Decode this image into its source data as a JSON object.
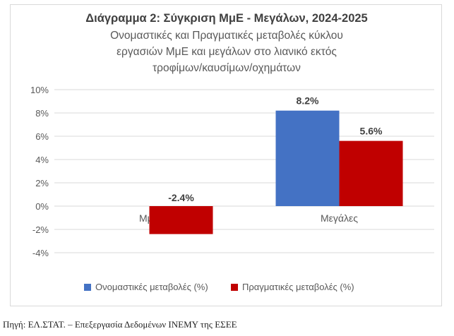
{
  "chart_data": {
    "type": "bar",
    "title": "Διάγραμμα 2: Σύγκριση ΜμΕ - Μεγάλων, 2024-2025",
    "subtitle_lines": [
      "Ονομαστικές και Πραγματικές μεταβολές κύκλου",
      "εργασιών ΜμΕ και μεγάλων στο λιανικό εκτός",
      "τροφίμων/καυσίμων/οχημάτων"
    ],
    "categories": [
      "ΜμΕ",
      "Μεγάλες"
    ],
    "series": [
      {
        "name": "Ονομαστικές μεταβολές (%)",
        "color": "#4472c4",
        "values": [
          null,
          8.2
        ]
      },
      {
        "name": "Πραγματικές μεταβολές (%)",
        "color": "#c00000",
        "values": [
          -2.4,
          5.6
        ]
      }
    ],
    "data_labels": [
      [
        "",
        "8.2%"
      ],
      [
        "-2.4%",
        "5.6%"
      ]
    ],
    "y_ticks": [
      10,
      8,
      6,
      4,
      2,
      0,
      -2,
      -4
    ],
    "y_tick_labels": [
      "10%",
      "8%",
      "6%",
      "4%",
      "2%",
      "0%",
      "-2%",
      "-4%"
    ],
    "ylim": [
      -4,
      10
    ],
    "grid": true,
    "legend_position": "bottom"
  },
  "source_note": "Πηγή: ΕΛ.ΣΤΑΤ. – Επεξεργασία Δεδομένων ΙΝΕΜΥ της ΕΣΕΕ",
  "colors": {
    "grid": "#d9d9d9",
    "text": "#595959",
    "title": "#404040"
  }
}
